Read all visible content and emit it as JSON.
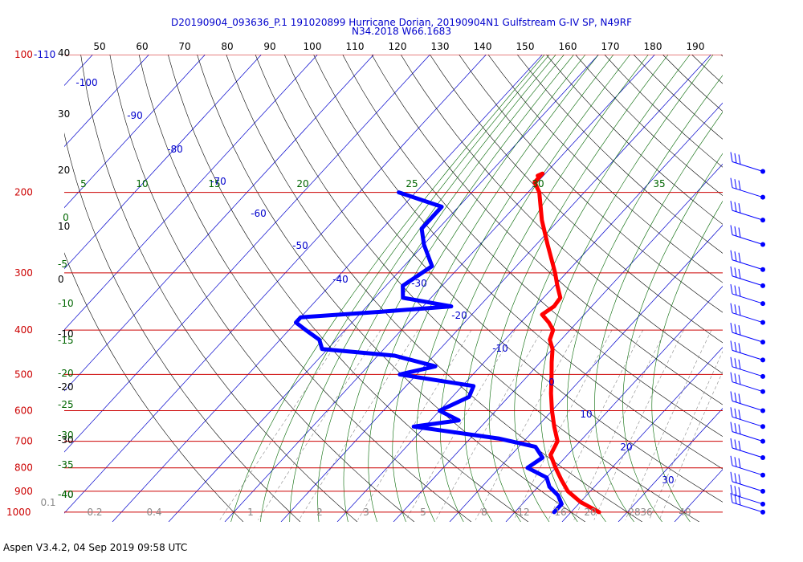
{
  "header": {
    "line1": "D20190904_093636_P.1 191020899 Hurricane Dorian, 20190904N1 Gulfstream G-IV SP, N49RF",
    "line2": "N34.2018 W66.1683"
  },
  "footer": "Aspen V3.4.2, 04 Sep 2019  09:58 UTC",
  "colors": {
    "temperature": "#ff0000",
    "dewpoint": "#0000ff",
    "isobar": "#cc0000",
    "isotherm": "#0000cc",
    "dry_adiabat": "#000000",
    "moist_adiabat": "#006600",
    "mixing_ratio": "#888888"
  },
  "chart_data": {
    "type": "skew-t",
    "pressure_axis_labels": [
      "100-110",
      "200",
      "300",
      "400",
      "500",
      "600",
      "700",
      "800",
      "900",
      "1000"
    ],
    "isobars_hPa": [
      100,
      200,
      300,
      400,
      500,
      600,
      700,
      800,
      900,
      1000
    ],
    "top_ticks": [
      "50",
      "60",
      "70",
      "80",
      "90",
      "100",
      "110",
      "120",
      "130",
      "140",
      "150",
      "160",
      "170",
      "180",
      "190"
    ],
    "altitude_ticks": [
      "40",
      "30",
      "20",
      "10",
      "0",
      "-10",
      "-20",
      "-30",
      "-40"
    ],
    "dry_adiabat_labels": [
      "-5",
      "-10",
      "-15",
      "-20",
      "-25",
      "-30",
      "-35",
      "-40"
    ],
    "moist_adiabat_labels": [
      "5",
      "10",
      "15",
      "20",
      "25",
      "30",
      "35",
      "0"
    ],
    "isotherm_labels": [
      "-100",
      "-90",
      "-80",
      "-70",
      "-60",
      "-50",
      "-40",
      "-30",
      "-20",
      "-10",
      "0",
      "10",
      "20",
      "30"
    ],
    "mixing_ratio_labels": [
      "0.1",
      "0.2",
      "0.4",
      "1",
      "2",
      "3",
      "5",
      "8",
      "12",
      "16",
      "20",
      "28",
      "36",
      "40"
    ],
    "temperature": {
      "name": "Temperature",
      "points": [
        [
          184,
          -41
        ],
        [
          182,
          -40.5
        ],
        [
          190,
          -40.5
        ],
        [
          200,
          -38
        ],
        [
          230,
          -33
        ],
        [
          260,
          -28
        ],
        [
          300,
          -22
        ],
        [
          320,
          -19.5
        ],
        [
          340,
          -17
        ],
        [
          355,
          -16.7
        ],
        [
          370,
          -17.5
        ],
        [
          385,
          -15
        ],
        [
          400,
          -13
        ],
        [
          420,
          -12
        ],
        [
          440,
          -10
        ],
        [
          470,
          -8
        ],
        [
          500,
          -6
        ],
        [
          550,
          -3
        ],
        [
          600,
          0
        ],
        [
          650,
          3
        ],
        [
          700,
          6
        ],
        [
          750,
          7
        ],
        [
          800,
          10
        ],
        [
          850,
          13
        ],
        [
          900,
          16
        ],
        [
          950,
          20
        ],
        [
          1000,
          25
        ]
      ]
    },
    "dewpoint": {
      "name": "Dewpoint",
      "points": [
        [
          200,
          -63
        ],
        [
          215,
          -53
        ],
        [
          240,
          -53
        ],
        [
          260,
          -50
        ],
        [
          290,
          -45
        ],
        [
          320,
          -47
        ],
        [
          340,
          -45
        ],
        [
          355,
          -35
        ],
        [
          365,
          -47
        ],
        [
          375,
          -60
        ],
        [
          385,
          -60
        ],
        [
          400,
          -57
        ],
        [
          420,
          -53
        ],
        [
          440,
          -51
        ],
        [
          455,
          -37
        ],
        [
          480,
          -28
        ],
        [
          500,
          -33
        ],
        [
          530,
          -18
        ],
        [
          560,
          -17
        ],
        [
          600,
          -20
        ],
        [
          630,
          -15
        ],
        [
          650,
          -22
        ],
        [
          690,
          -5
        ],
        [
          720,
          3
        ],
        [
          760,
          6
        ],
        [
          800,
          5
        ],
        [
          840,
          10
        ],
        [
          880,
          12
        ],
        [
          920,
          15
        ],
        [
          960,
          17
        ],
        [
          1000,
          17
        ]
      ]
    },
    "wind_barbs_hPa": [
      180,
      205,
      230,
      260,
      295,
      320,
      350,
      385,
      425,
      465,
      505,
      545,
      600,
      650,
      700,
      760,
      830,
      900,
      960,
      1000
    ]
  }
}
